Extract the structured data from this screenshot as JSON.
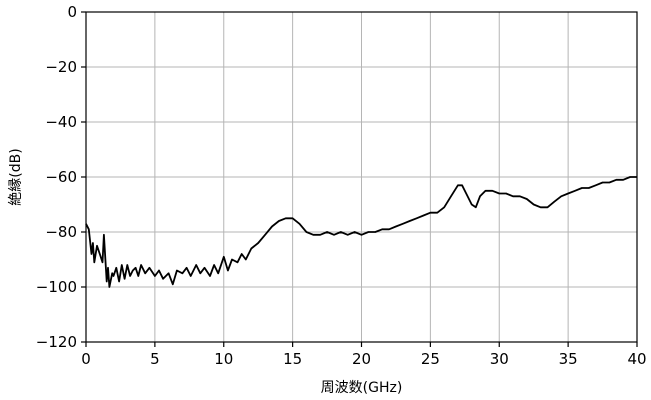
{
  "chart_data": {
    "type": "line",
    "xlabel": "周波数(GHz)",
    "ylabel": "絶縁(dB)",
    "xlim": [
      0,
      40
    ],
    "ylim": [
      -120,
      0
    ],
    "xticks": [
      0,
      5,
      10,
      15,
      20,
      25,
      30,
      35,
      40
    ],
    "yticks": [
      0,
      -20,
      -40,
      -60,
      -80,
      -100,
      -120
    ],
    "xtick_labels": [
      "0",
      "5",
      "10",
      "15",
      "20",
      "25",
      "30",
      "35",
      "40"
    ],
    "ytick_labels": [
      "0",
      "−20",
      "−40",
      "−60",
      "−80",
      "−100",
      "−120"
    ],
    "grid": true,
    "series": [
      {
        "color": "#000000",
        "x": [
          0.0,
          0.2,
          0.4,
          0.5,
          0.6,
          0.8,
          1.0,
          1.2,
          1.3,
          1.5,
          1.6,
          1.7,
          1.9,
          2.0,
          2.2,
          2.4,
          2.6,
          2.8,
          3.0,
          3.2,
          3.4,
          3.6,
          3.8,
          4.0,
          4.3,
          4.6,
          5.0,
          5.3,
          5.6,
          6.0,
          6.3,
          6.6,
          7.0,
          7.3,
          7.6,
          8.0,
          8.3,
          8.6,
          9.0,
          9.3,
          9.6,
          10.0,
          10.3,
          10.6,
          11.0,
          11.3,
          11.6,
          12.0,
          12.5,
          13.0,
          13.5,
          14.0,
          14.5,
          15.0,
          15.5,
          16.0,
          16.5,
          17.0,
          17.5,
          18.0,
          18.5,
          19.0,
          19.5,
          20.0,
          20.5,
          21.0,
          21.5,
          22.0,
          22.5,
          23.0,
          23.5,
          24.0,
          24.5,
          25.0,
          25.5,
          26.0,
          26.5,
          27.0,
          27.3,
          27.6,
          28.0,
          28.3,
          28.6,
          29.0,
          29.5,
          30.0,
          30.5,
          31.0,
          31.5,
          32.0,
          32.5,
          33.0,
          33.5,
          34.0,
          34.5,
          35.0,
          35.5,
          36.0,
          36.5,
          37.0,
          37.5,
          38.0,
          38.5,
          39.0,
          39.5,
          40.0
        ],
        "y": [
          -77,
          -79,
          -88,
          -84,
          -91,
          -85,
          -88,
          -91,
          -81,
          -98,
          -93,
          -100,
          -95,
          -96,
          -93,
          -98,
          -92,
          -97,
          -92,
          -96,
          -94,
          -93,
          -96,
          -92,
          -95,
          -93,
          -96,
          -94,
          -97,
          -95,
          -99,
          -94,
          -95,
          -93,
          -96,
          -92,
          -95,
          -93,
          -96,
          -92,
          -95,
          -89,
          -94,
          -90,
          -91,
          -88,
          -90,
          -86,
          -84,
          -81,
          -78,
          -76,
          -75,
          -75,
          -77,
          -80,
          -81,
          -81,
          -80,
          -81,
          -80,
          -81,
          -80,
          -81,
          -80,
          -80,
          -79,
          -79,
          -78,
          -77,
          -76,
          -75,
          -74,
          -73,
          -73,
          -71,
          -67,
          -63,
          -63,
          -66,
          -70,
          -71,
          -67,
          -65,
          -65,
          -66,
          -66,
          -67,
          -67,
          -68,
          -70,
          -71,
          -71,
          -69,
          -67,
          -66,
          -65,
          -64,
          -64,
          -63,
          -62,
          -62,
          -61,
          -61,
          -60,
          -60
        ]
      }
    ]
  }
}
